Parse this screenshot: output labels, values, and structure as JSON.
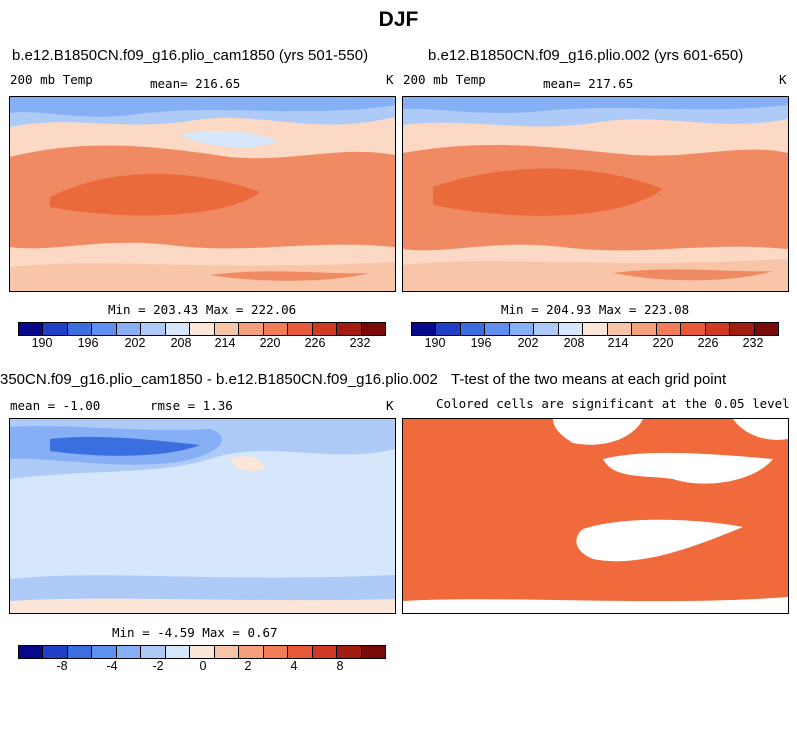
{
  "title": "DJF",
  "panels": {
    "p1": {
      "title": "b.e12.B1850CN.f09_g16.plio_cam1850 (yrs 501-550)",
      "left_label": "200 mb Temp",
      "center_label": "mean= 216.65",
      "right_label": "K",
      "minmax": "Min = 203.43 Max = 222.06"
    },
    "p2": {
      "title": "b.e12.B1850CN.f09_g16.plio.002 (yrs 601-650)",
      "left_label": "200 mb Temp",
      "center_label": "mean= 217.65",
      "right_label": "K",
      "minmax": "Min = 204.93 Max = 223.08"
    },
    "p3": {
      "title": "350CN.f09_g16.plio_cam1850 - b.e12.B1850CN.f09_g16.plio.002",
      "left_label": "mean =  -1.00",
      "center_label": "rmse =   1.36",
      "right_label": "K",
      "minmax": "Min =  -4.59 Max =   0.67"
    },
    "p4": {
      "title": "T-test of the two means at each grid point",
      "subtitle": "Colored cells are significant at the 0.05 level"
    }
  },
  "colorbar_abs": {
    "colors": [
      "#08088a",
      "#1f3fc4",
      "#3b6fe0",
      "#5f8ff0",
      "#86aff5",
      "#aecbf8",
      "#d6e6fb",
      "#fbe6d8",
      "#f9c5a8",
      "#f5a07c",
      "#f07d57",
      "#e8593a",
      "#cf3a24",
      "#a11d12",
      "#7a0a08"
    ],
    "tick_labels": [
      "190",
      "196",
      "202",
      "208",
      "214",
      "220",
      "226",
      "232"
    ]
  },
  "colorbar_diff": {
    "colors": [
      "#08088a",
      "#1f3fc4",
      "#3b6fe0",
      "#5f8ff0",
      "#86aff5",
      "#aecbf8",
      "#d6e6fb",
      "#fbe6d8",
      "#f9c5a8",
      "#f5a07c",
      "#f07d57",
      "#e8593a",
      "#cf3a24",
      "#a11d12",
      "#7a0a08"
    ],
    "tick_labels": [
      "-8",
      "-4",
      "-2",
      "0",
      "2",
      "4",
      "8"
    ]
  },
  "colors": {
    "significant": "#f06a3c",
    "warm_band": "#f08a62",
    "warm_core": "#ea6a3c",
    "cool_band": "#aecbf8",
    "pale_warm": "#fbd9c4",
    "diff_base": "#d6e6fb",
    "diff_mid": "#86aff5",
    "diff_strong": "#3b6fe0"
  }
}
